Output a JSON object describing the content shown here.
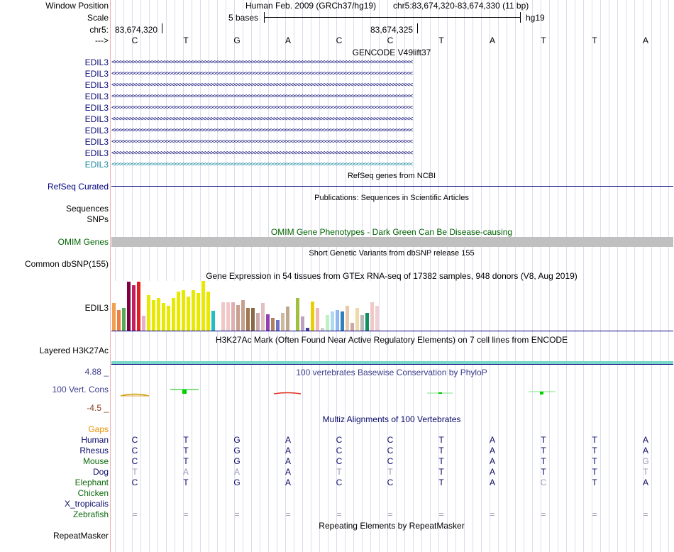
{
  "header": {
    "window_position_label": "Window Position",
    "scale_label": "Scale",
    "chrom_label": "chr5:",
    "strand_label": "--->",
    "assembly_text": "Human Feb. 2009 (GRCh37/hg19)",
    "position_text": "chr5:83,674,320-83,674,330 (11 bp)",
    "scale_text": "5 bases",
    "scale_db": "hg19",
    "coord_left": "83,674,320",
    "coord_mid": "83,674,325"
  },
  "sequence": [
    "C",
    "T",
    "G",
    "A",
    "C",
    "C",
    "T",
    "A",
    "T",
    "T",
    "A"
  ],
  "gencode": {
    "title": "GENCODE V49lift37",
    "rows": [
      "EDIL3",
      "EDIL3",
      "EDIL3",
      "EDIL3",
      "EDIL3",
      "EDIL3",
      "EDIL3",
      "EDIL3",
      "EDIL3",
      "EDIL3"
    ],
    "arrow_text": "<<<<<<<<<<<<<<<<<<<<<<<<<<<<<<<<<<<<<<<<<<<<<<<<<<<<<<<<<<<<<<<<<<<<<<<<<<<<<<<<<<<<<<<<<<<<<<<<"
  },
  "refseq": {
    "title": "RefSeq genes from NCBI",
    "label": "RefSeq Curated"
  },
  "publications": {
    "title": "Publications: Sequences in Scientific Articles",
    "label1": "Sequences",
    "label2": "SNPs"
  },
  "omim": {
    "title": "OMIM Gene Phenotypes - Dark Green Can Be Disease-causing",
    "label": "OMIM Genes"
  },
  "dbsnp": {
    "title": "Short Genetic Variants from dbSNP release 155",
    "label": "Common dbSNP(155)"
  },
  "gtex": {
    "title": "Gene Expression in 54 tissues from GTEx RNA-seq of 17382 samples, 948 donors (V8, Aug 2019)",
    "label": "EDIL3",
    "bars": [
      {
        "v": 0.55,
        "c": "#f0a050"
      },
      {
        "v": 0.42,
        "c": "#e88040"
      },
      {
        "v": 0.45,
        "c": "#55aa55"
      },
      {
        "v": 0.98,
        "c": "#800040"
      },
      {
        "v": 0.92,
        "c": "#c02060"
      },
      {
        "v": 0.98,
        "c": "#e02020"
      },
      {
        "v": 0.3,
        "c": "#e8b0c8"
      },
      {
        "v": 0.72,
        "c": "#e8e800"
      },
      {
        "v": 0.62,
        "c": "#e8e800"
      },
      {
        "v": 0.66,
        "c": "#e8e800"
      },
      {
        "v": 0.55,
        "c": "#e8e800"
      },
      {
        "v": 0.5,
        "c": "#e8e800"
      },
      {
        "v": 0.65,
        "c": "#e8e800"
      },
      {
        "v": 0.78,
        "c": "#e8e800"
      },
      {
        "v": 0.82,
        "c": "#e8e800"
      },
      {
        "v": 0.68,
        "c": "#e8e800"
      },
      {
        "v": 0.82,
        "c": "#e8e800"
      },
      {
        "v": 0.75,
        "c": "#e8e800"
      },
      {
        "v": 1.0,
        "c": "#e8e800"
      },
      {
        "v": 0.78,
        "c": "#e8e800"
      },
      {
        "v": 0.4,
        "c": "#20c0c0"
      },
      {
        "v": 0.02,
        "c": "#ffffff"
      },
      {
        "v": 0.57,
        "c": "#f0c8c8"
      },
      {
        "v": 0.57,
        "c": "#f0c8c8"
      },
      {
        "v": 0.57,
        "c": "#e0b0b0"
      },
      {
        "v": 0.52,
        "c": "#c8a090"
      },
      {
        "v": 0.62,
        "c": "#c8a090"
      },
      {
        "v": 0.45,
        "c": "#a07850"
      },
      {
        "v": 0.45,
        "c": "#8a6848"
      },
      {
        "v": 0.35,
        "c": "#c8a8a8"
      },
      {
        "v": 0.55,
        "c": "#e0c0c0"
      },
      {
        "v": 0.33,
        "c": "#9040b0"
      },
      {
        "v": 0.25,
        "c": "#b08060"
      },
      {
        "v": 0.22,
        "c": "#7070c0"
      },
      {
        "v": 0.35,
        "c": "#d0b8a0"
      },
      {
        "v": 0.48,
        "c": "#c0a890"
      },
      {
        "v": 0.02,
        "c": "#ffffff"
      },
      {
        "v": 0.65,
        "c": "#a0c040"
      },
      {
        "v": 0.28,
        "c": "#c0a0c0"
      },
      {
        "v": 0.05,
        "c": "#4040a0"
      },
      {
        "v": 0.58,
        "c": "#e8d000"
      },
      {
        "v": 0.45,
        "c": "#f0b8b8"
      },
      {
        "v": 0.05,
        "c": "#d0d0d0"
      },
      {
        "v": 0.32,
        "c": "#c0f0c0"
      },
      {
        "v": 0.38,
        "c": "#b0d8f0"
      },
      {
        "v": 0.42,
        "c": "#90b8f0"
      },
      {
        "v": 0.38,
        "c": "#3080c0"
      },
      {
        "v": 0.5,
        "c": "#e8c8a8"
      },
      {
        "v": 0.15,
        "c": "#c8a8a8"
      },
      {
        "v": 0.45,
        "c": "#f0d8a8"
      },
      {
        "v": 0.32,
        "c": "#b8b8b8"
      },
      {
        "v": 0.35,
        "c": "#109060"
      },
      {
        "v": 0.57,
        "c": "#f0c8c8"
      },
      {
        "v": 0.5,
        "c": "#f0d0d0"
      }
    ]
  },
  "h3k27ac": {
    "title": "H3K27Ac Mark (Often Found Near Active Regulatory Elements) on 7 cell lines from ENCODE",
    "label": "Layered H3K27Ac"
  },
  "phylop": {
    "title": "100 vertebrates Basewise Conservation by PhyloP",
    "label": "100 Vert. Cons",
    "max": "4.88 _",
    "min": "-4.5 _"
  },
  "multiz": {
    "title": "Multiz Alignments of 100 Vertebrates",
    "gaps_label": "Gaps",
    "species": [
      {
        "name": "Human",
        "bases": [
          "C",
          "T",
          "G",
          "A",
          "C",
          "C",
          "T",
          "A",
          "T",
          "T",
          "A"
        ]
      },
      {
        "name": "Rhesus",
        "bases": [
          "C",
          "T",
          "G",
          "A",
          "C",
          "C",
          "T",
          "A",
          "T",
          "T",
          "A"
        ]
      },
      {
        "name": "Mouse",
        "bases": [
          "C",
          "T",
          "G",
          "A",
          "C",
          "C",
          "T",
          "A",
          "T",
          "T",
          "G"
        ]
      },
      {
        "name": "Dog",
        "bases": [
          "T",
          "A",
          "A",
          "A",
          "T",
          "T",
          "T",
          "A",
          "T",
          "T",
          "T"
        ]
      },
      {
        "name": "Elephant",
        "bases": [
          "C",
          "T",
          "G",
          "A",
          "C",
          "C",
          "T",
          "A",
          "C",
          "T",
          "A"
        ]
      },
      {
        "name": "Chicken",
        "bases": [
          "",
          "",
          "",
          "",
          "",
          "",
          "",
          "",
          "",
          "",
          ""
        ]
      },
      {
        "name": "X_tropicalis",
        "bases": [
          "",
          "",
          "",
          "",
          "",
          "",
          "",
          "",
          "",
          "",
          ""
        ]
      },
      {
        "name": "Zebrafish",
        "bases": [
          "=",
          "=",
          "=",
          "=",
          "=",
          "=",
          "=",
          "=",
          "=",
          "=",
          "="
        ]
      }
    ]
  },
  "repeatmasker": {
    "title": "Repeating Elements by RepeatMasker",
    "label": "RepeatMasker"
  }
}
